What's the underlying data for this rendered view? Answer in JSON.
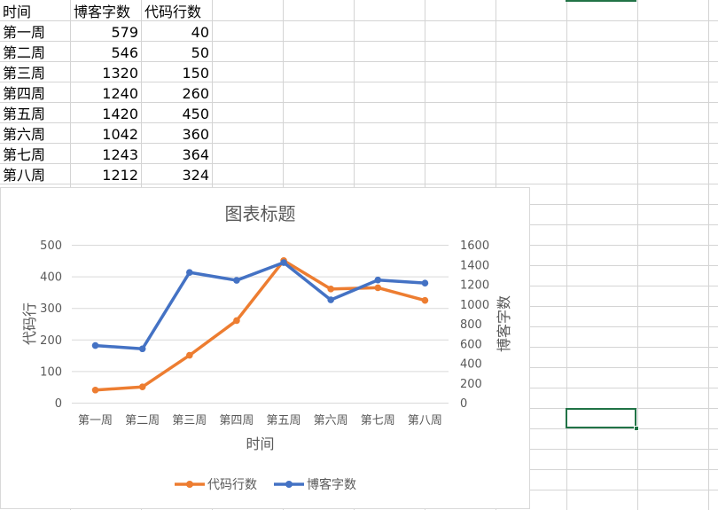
{
  "sheet": {
    "header": [
      "时间",
      "博客字数",
      "代码行数"
    ],
    "rows": [
      {
        "week": "第一周",
        "blog": "579",
        "code": "40"
      },
      {
        "week": "第二周",
        "blog": "546",
        "code": "50"
      },
      {
        "week": "第三周",
        "blog": "1320",
        "code": "150"
      },
      {
        "week": "第四周",
        "blog": "1240",
        "code": "260"
      },
      {
        "week": "第五周",
        "blog": "1420",
        "code": "450"
      },
      {
        "week": "第六周",
        "blog": "1042",
        "code": "360"
      },
      {
        "week": "第七周",
        "blog": "1243",
        "code": "364"
      },
      {
        "week": "第八周",
        "blog": "1212",
        "code": "324"
      }
    ]
  },
  "colors": {
    "code_series": "#ED7D31",
    "blog_series": "#4472C4",
    "gridline": "#d9d9d9",
    "axis_text": "#595959",
    "selection": "#217346"
  },
  "chart_data": {
    "type": "line",
    "title": "图表标题",
    "xlabel": "时间",
    "ylabel_left": "代码行",
    "ylabel_right": "博客字数",
    "categories": [
      "第一周",
      "第二周",
      "第三周",
      "第四周",
      "第五周",
      "第六周",
      "第七周",
      "第八周"
    ],
    "y_left": {
      "min": 0,
      "max": 500,
      "step": 100,
      "ticks": [
        "0",
        "100",
        "200",
        "300",
        "400",
        "500"
      ]
    },
    "y_right": {
      "min": 0,
      "max": 1600,
      "step": 200,
      "ticks": [
        "0",
        "200",
        "400",
        "600",
        "800",
        "1000",
        "1200",
        "1400",
        "1600"
      ]
    },
    "series": [
      {
        "name": "代码行数",
        "axis": "left",
        "color": "#ED7D31",
        "values": [
          40,
          50,
          150,
          260,
          450,
          360,
          364,
          324
        ]
      },
      {
        "name": "博客字数",
        "axis": "right",
        "color": "#4472C4",
        "values": [
          579,
          546,
          1320,
          1240,
          1420,
          1042,
          1243,
          1212
        ]
      }
    ],
    "grid": true,
    "legend": "bottom"
  }
}
